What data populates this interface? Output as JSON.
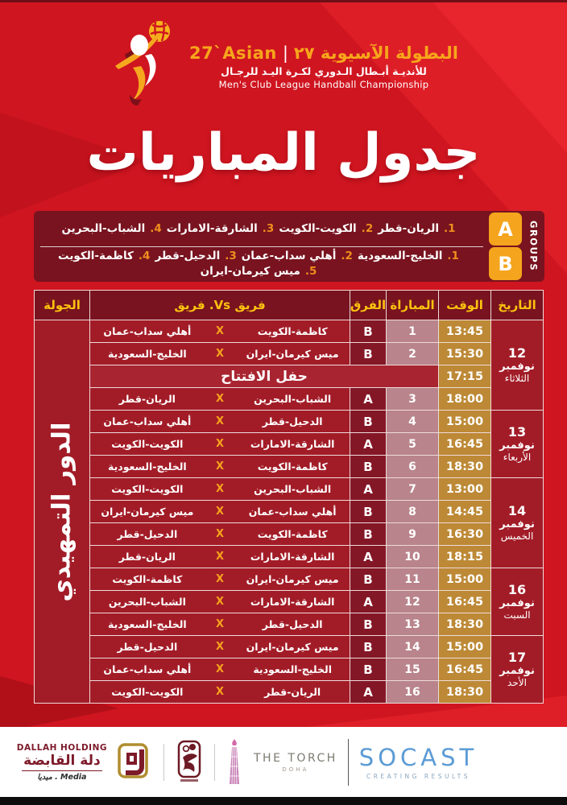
{
  "logo": {
    "english_title": "27`Asian",
    "divider": "|",
    "arabic_title": "البطولة الآسيوية ٢٧",
    "subtitle_ar": "للأنديـة أبـطال الـدوري لكـرة اليـد للرجـال",
    "subtitle_en": "Men's Club League Handball Championship"
  },
  "page_title": "جدول المباريات",
  "groups": {
    "label": "GROUPS",
    "rows": [
      {
        "badge": "A",
        "lines": [
          [
            {
              "num": "1.",
              "name": "الريان-قطر"
            },
            {
              "num": "2.",
              "name": "الكويت-الكويت"
            },
            {
              "num": "3.",
              "name": "الشارقة-الامارات"
            },
            {
              "num": "4.",
              "name": "الشباب-البحرين"
            }
          ]
        ]
      },
      {
        "badge": "B",
        "lines": [
          [
            {
              "num": "1.",
              "name": "الخليج-السعودية"
            },
            {
              "num": "2.",
              "name": "أهلي سداب-عمان"
            },
            {
              "num": "3.",
              "name": "الدحيل-قطر"
            },
            {
              "num": "4.",
              "name": "كاظمة-الكويت"
            }
          ],
          [
            {
              "num": "5.",
              "name": "ميس كيرمان-ايران"
            }
          ]
        ]
      }
    ]
  },
  "table": {
    "headers": {
      "date": "التاريخ",
      "time": "الوقت",
      "match": "المباراة",
      "group": "الفرق",
      "teams": "فريق Vs. فريق",
      "round": "الجولة"
    },
    "round_label": "الدور التمهيدي",
    "vs_mark": "X",
    "date_groups": [
      {
        "day": "12",
        "month": "نوفمبر",
        "weekday": "الثلاثاء",
        "rows": 4
      },
      {
        "day": "13",
        "month": "نوفمبر",
        "weekday": "الأربعاء",
        "rows": 3
      },
      {
        "day": "14",
        "month": "نوفمبر",
        "weekday": "الخميس",
        "rows": 4
      },
      {
        "day": "16",
        "month": "نوفمبر",
        "weekday": "السبت",
        "rows": 3
      },
      {
        "day": "17",
        "month": "نوفمبر",
        "weekday": "الأحد",
        "rows": 3
      }
    ],
    "rows": [
      {
        "type": "match",
        "no": "1",
        "group": "B",
        "right": "كاظمة-الكويت",
        "left": "أهلي سداب-عمان",
        "time": "13:45"
      },
      {
        "type": "match",
        "no": "2",
        "group": "B",
        "right": "ميس كيرمان-ايران",
        "left": "الخليج-السعودية",
        "time": "15:30"
      },
      {
        "type": "ceremony",
        "title": "حفل الافتتاح",
        "time": "17:15"
      },
      {
        "type": "match",
        "no": "3",
        "group": "A",
        "right": "الشباب-البحرين",
        "left": "الريان-قطر",
        "time": "18:00"
      },
      {
        "type": "match",
        "no": "4",
        "group": "B",
        "right": "الدحيل-قطر",
        "left": "أهلي سداب-عمان",
        "time": "15:00"
      },
      {
        "type": "match",
        "no": "5",
        "group": "A",
        "right": "الشارقة-الامارات",
        "left": "الكويت-الكويت",
        "time": "16:45"
      },
      {
        "type": "match",
        "no": "6",
        "group": "B",
        "right": "كاظمة-الكويت",
        "left": "الخليج-السعودية",
        "time": "18:30"
      },
      {
        "type": "match",
        "no": "7",
        "group": "A",
        "right": "الشباب-البحرين",
        "left": "الكويت-الكويت",
        "time": "13:00"
      },
      {
        "type": "match",
        "no": "8",
        "group": "B",
        "right": "أهلي سداب-عمان",
        "left": "ميس كيرمان-ايران",
        "time": "14:45"
      },
      {
        "type": "match",
        "no": "9",
        "group": "B",
        "right": "كاظمة-الكويت",
        "left": "الدحيل-قطر",
        "time": "16:30"
      },
      {
        "type": "match",
        "no": "10",
        "group": "A",
        "right": "الشارقة-الامارات",
        "left": "الريان-قطر",
        "time": "18:15"
      },
      {
        "type": "match",
        "no": "11",
        "group": "B",
        "right": "ميس كيرمان-ايران",
        "left": "كاظمة-الكويت",
        "time": "15:00"
      },
      {
        "type": "match",
        "no": "12",
        "group": "A",
        "right": "الشارقة-الامارات",
        "left": "الشباب-البحرين",
        "time": "16:45"
      },
      {
        "type": "match",
        "no": "13",
        "group": "B",
        "right": "الدحيل-قطر",
        "left": "الخليج-السعودية",
        "time": "18:30"
      },
      {
        "type": "match",
        "no": "14",
        "group": "B",
        "right": "ميس كيرمان-ايران",
        "left": "الدحيل-قطر",
        "time": "15:00"
      },
      {
        "type": "match",
        "no": "15",
        "group": "B",
        "right": "الخليج-السعودية",
        "left": "أهلي سداب-عمان",
        "time": "16:45"
      },
      {
        "type": "match",
        "no": "16",
        "group": "A",
        "right": "الريان-قطر",
        "left": "الكويت-الكويت",
        "time": "18:30"
      }
    ]
  },
  "sponsors": {
    "dallah": {
      "name_en": "DALLAH HOLDING",
      "name_ar": "دلة القابضة",
      "tagline": "Media . ميديا"
    },
    "torch": {
      "name": "THE TORCH",
      "city": "DOHA"
    },
    "socast": {
      "name": "SOCAST",
      "tagline": "CREATING RESULTS"
    }
  },
  "colors": {
    "page_red": "#cf1520",
    "maroon_panel": "#78131f",
    "crimson_cell": "#a21c27",
    "group_cell": "#841726",
    "match_no_cell": "#b9848b",
    "time_cell": "#bd8936",
    "header_yellow": "#fec30f",
    "badge_orange": "#f5a41d",
    "vs_orange": "#f5a31c",
    "socast_blue": "#5b9bd5",
    "dallah_maroon": "#7d1a2a"
  }
}
